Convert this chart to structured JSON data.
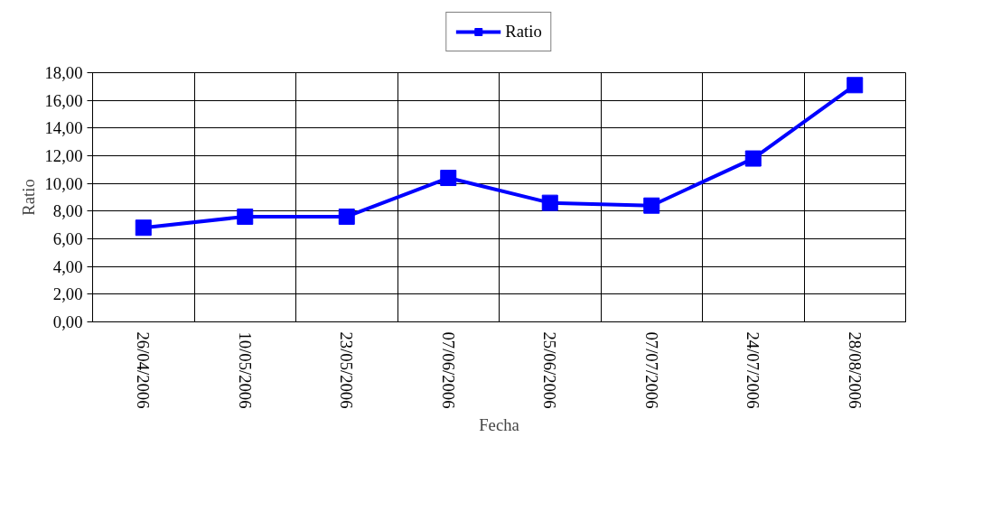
{
  "chart_data": {
    "type": "line",
    "xlabel": "Fecha",
    "ylabel": "Ratio",
    "categories": [
      "26/04/2006",
      "10/05/2006",
      "23/05/2006",
      "07/06/2006",
      "25/06/2006",
      "07/07/2006",
      "24/07/2006",
      "28/08/2006"
    ],
    "series": [
      {
        "name": "Ratio",
        "color": "#0000ff",
        "values": [
          6.8,
          7.6,
          7.6,
          10.4,
          8.6,
          8.4,
          11.8,
          17.1
        ]
      }
    ],
    "ylim": [
      0,
      18
    ],
    "yticks": [
      {
        "value": 0,
        "label": "0,00"
      },
      {
        "value": 2,
        "label": "2,00"
      },
      {
        "value": 4,
        "label": "4,00"
      },
      {
        "value": 6,
        "label": "6,00"
      },
      {
        "value": 8,
        "label": "8,00"
      },
      {
        "value": 10,
        "label": "10,00"
      },
      {
        "value": 12,
        "label": "12,00"
      },
      {
        "value": 14,
        "label": "14,00"
      },
      {
        "value": 16,
        "label": "16,00"
      },
      {
        "value": 18,
        "label": "18,00"
      }
    ],
    "grid": true,
    "legend": "top",
    "marker": "square",
    "line_style": "solid"
  }
}
